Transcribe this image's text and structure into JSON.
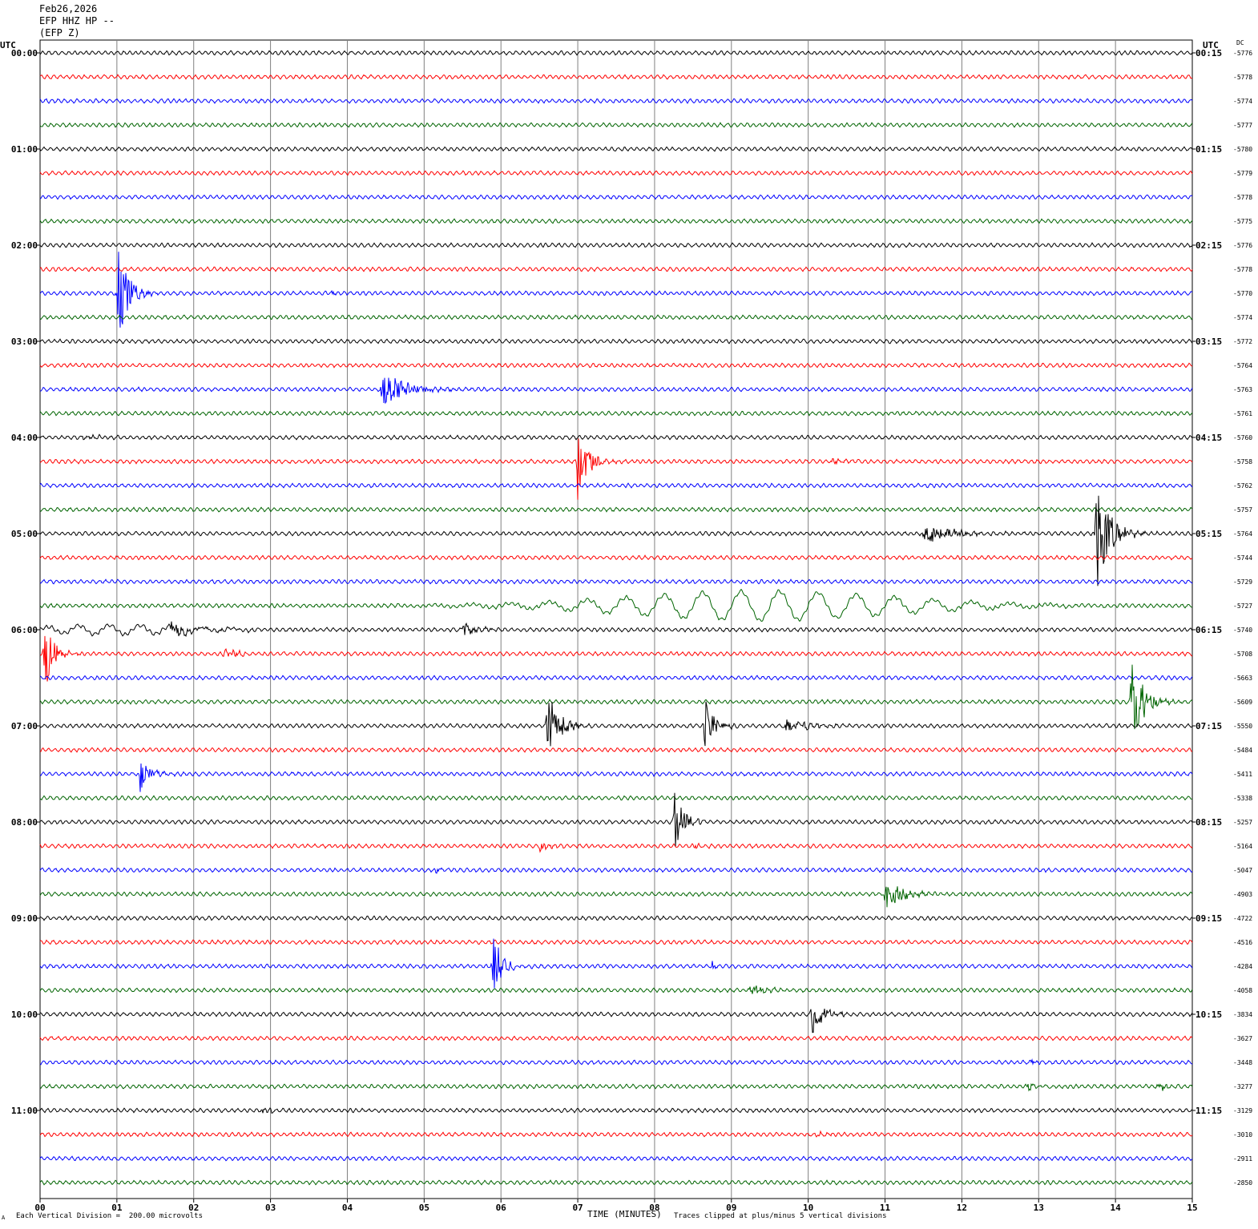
{
  "header": {
    "date": "Feb26,2026",
    "station": "EFP HHZ HP --",
    "channel": "(EFP Z)"
  },
  "left_axis_label": "UTC",
  "right_axis_label": "UTC",
  "dc_label": "DC",
  "footer": {
    "scale_note": "Each Vertical Division =  200.00 microvolts",
    "xlabel": "TIME (MINUTES)",
    "clip_note": "Traces clipped at plus/minus 5 vertical divisions",
    "corner_mark": "A"
  },
  "colors": {
    "trace_cycle": [
      "#000000",
      "#ff0000",
      "#0000ff",
      "#006400"
    ],
    "grid": "#808080"
  },
  "chart_data": {
    "type": "line",
    "title": "",
    "xlabel": "TIME (MINUTES)",
    "xlim": [
      0,
      15
    ],
    "x_ticks": [
      "00",
      "01",
      "02",
      "03",
      "04",
      "05",
      "06",
      "07",
      "08",
      "09",
      "10",
      "11",
      "12",
      "13",
      "14",
      "15"
    ],
    "left_time_labels": [
      "00:00",
      "01:00",
      "02:00",
      "03:00",
      "04:00",
      "05:00",
      "06:00",
      "07:00",
      "08:00",
      "09:00",
      "10:00",
      "11:00"
    ],
    "right_time_labels": [
      "00:15",
      "01:15",
      "02:15",
      "03:15",
      "04:15",
      "05:15",
      "06:15",
      "07:15",
      "08:15",
      "09:15",
      "10:15",
      "11:15"
    ],
    "dc_offsets": [
      "-5776",
      "-5778",
      "-5774",
      "-5777",
      "-5780",
      "-5779",
      "-5778",
      "-5775",
      "-5776",
      "-5778",
      "-5770",
      "-5774",
      "-5772",
      "-5764",
      "-5763",
      "-5761",
      "-5760",
      "-5758",
      "-5762",
      "-5757",
      "-5764",
      "-5744",
      "-5729",
      "-5727",
      "-5740",
      "-5708",
      "-5663",
      "-5609",
      "-5550",
      "-5484",
      "-5411",
      "-5338",
      "-5257",
      "-5164",
      "-5047",
      "-4903",
      "-4722",
      "-4516",
      "-4284",
      "-4058",
      "-3834",
      "-3627",
      "-3448",
      "-3277",
      "-3129",
      "-3010",
      "-2911",
      "-2850"
    ],
    "trace_interval_minutes": 15,
    "units_per_division": "200.00 microvolts",
    "noise_amplitude": 2.0,
    "events": [
      {
        "trace": 2,
        "minute": 0.05,
        "amp": 1.2,
        "dur": 0.2
      },
      {
        "trace": 3,
        "minute": 12.8,
        "amp": 1.0,
        "dur": 0.2
      },
      {
        "trace": 10,
        "minute": 1.02,
        "amp": 70,
        "dur": 0.25
      },
      {
        "trace": 10,
        "minute": 3.8,
        "amp": 3,
        "dur": 0.15
      },
      {
        "trace": 14,
        "minute": 4.45,
        "amp": 22,
        "dur": 0.7
      },
      {
        "trace": 16,
        "minute": 0.55,
        "amp": 3,
        "dur": 0.5
      },
      {
        "trace": 17,
        "minute": 7.0,
        "amp": 55,
        "dur": 0.3
      },
      {
        "trace": 17,
        "minute": 10.3,
        "amp": 3,
        "dur": 0.4
      },
      {
        "trace": 20,
        "minute": 11.5,
        "amp": 11,
        "dur": 0.8
      },
      {
        "trace": 20,
        "minute": 13.75,
        "amp": 75,
        "dur": 0.35
      },
      {
        "trace": 24,
        "minute": 1.7,
        "amp": 7,
        "dur": 0.9
      },
      {
        "trace": 24,
        "minute": 5.5,
        "amp": 7,
        "dur": 0.5
      },
      {
        "trace": 25,
        "minute": 0.06,
        "amp": 45,
        "dur": 0.25
      },
      {
        "trace": 25,
        "minute": 2.4,
        "amp": 6,
        "dur": 0.4
      },
      {
        "trace": 27,
        "minute": 14.2,
        "amp": 55,
        "dur": 0.35
      },
      {
        "trace": 28,
        "minute": 6.6,
        "amp": 55,
        "dur": 0.3
      },
      {
        "trace": 28,
        "minute": 8.65,
        "amp": 40,
        "dur": 0.25
      },
      {
        "trace": 28,
        "minute": 9.7,
        "amp": 8,
        "dur": 0.7
      },
      {
        "trace": 30,
        "minute": 1.3,
        "amp": 25,
        "dur": 0.25
      },
      {
        "trace": 32,
        "minute": 8.25,
        "amp": 45,
        "dur": 0.25
      },
      {
        "trace": 33,
        "minute": 6.5,
        "amp": 6,
        "dur": 0.3
      },
      {
        "trace": 33,
        "minute": 8.5,
        "amp": 3,
        "dur": 0.3
      },
      {
        "trace": 34,
        "minute": 5.15,
        "amp": 5,
        "dur": 0.15
      },
      {
        "trace": 35,
        "minute": 11.0,
        "amp": 18,
        "dur": 0.5
      },
      {
        "trace": 38,
        "minute": 5.9,
        "amp": 40,
        "dur": 0.25
      },
      {
        "trace": 38,
        "minute": 8.75,
        "amp": 6,
        "dur": 0.1
      },
      {
        "trace": 39,
        "minute": 9.25,
        "amp": 7,
        "dur": 0.4
      },
      {
        "trace": 40,
        "minute": 10.05,
        "amp": 30,
        "dur": 0.3
      },
      {
        "trace": 42,
        "minute": 12.9,
        "amp": 5,
        "dur": 0.2
      },
      {
        "trace": 43,
        "minute": 12.85,
        "amp": 5,
        "dur": 0.3
      },
      {
        "trace": 43,
        "minute": 14.55,
        "amp": 7,
        "dur": 0.25
      },
      {
        "trace": 44,
        "minute": 2.9,
        "amp": 6,
        "dur": 0.2
      },
      {
        "trace": 45,
        "minute": 10.1,
        "amp": 3,
        "dur": 0.3
      }
    ],
    "long_period_waves": [
      {
        "trace": 23,
        "center_minute": 9.4,
        "width_minutes": 3.8,
        "amp": 18,
        "period_minutes": 0.5
      },
      {
        "trace": 24,
        "center_minute": 1.0,
        "width_minutes": 2.0,
        "amp": 6,
        "period_minutes": 0.4
      }
    ]
  }
}
